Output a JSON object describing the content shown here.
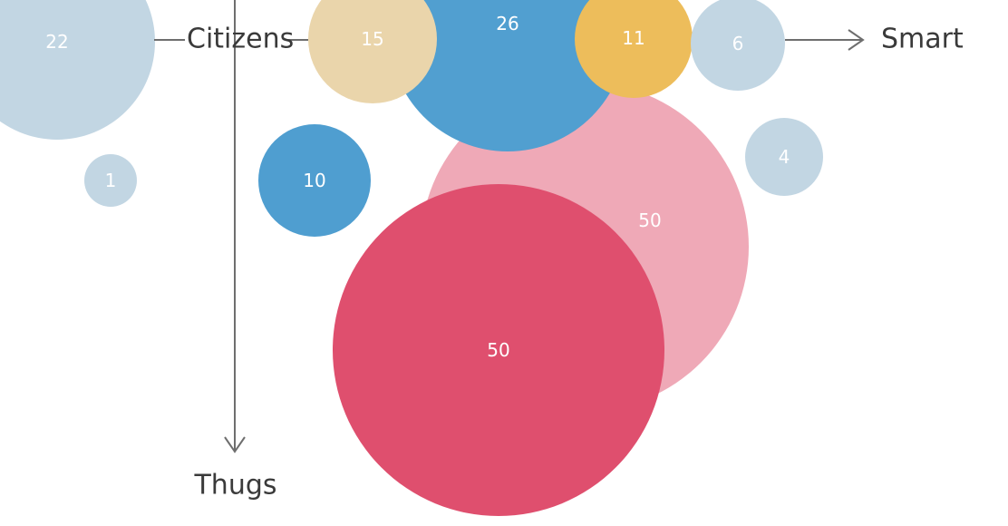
{
  "chart_data": {
    "type": "bubble",
    "axes": {
      "horizontal": {
        "left_label": "Citizens",
        "right_label": "Smart"
      },
      "vertical": {
        "bottom_label": "Thugs"
      }
    },
    "bubbles": [
      {
        "value": 22,
        "color": "#c2d6e3"
      },
      {
        "value": 1,
        "color": "#c2d6e3"
      },
      {
        "value": 50,
        "color": "#efa9b7"
      },
      {
        "value": 26,
        "color": "#519fd0"
      },
      {
        "value": 15,
        "color": "#ead5ab"
      },
      {
        "value": 11,
        "color": "#edbd5b"
      },
      {
        "value": 6,
        "color": "#c2d6e3"
      },
      {
        "value": 4,
        "color": "#c2d6e3"
      },
      {
        "value": 10,
        "color": "#4f9ed0"
      },
      {
        "value": 50,
        "color": "#df4f6e"
      }
    ]
  }
}
